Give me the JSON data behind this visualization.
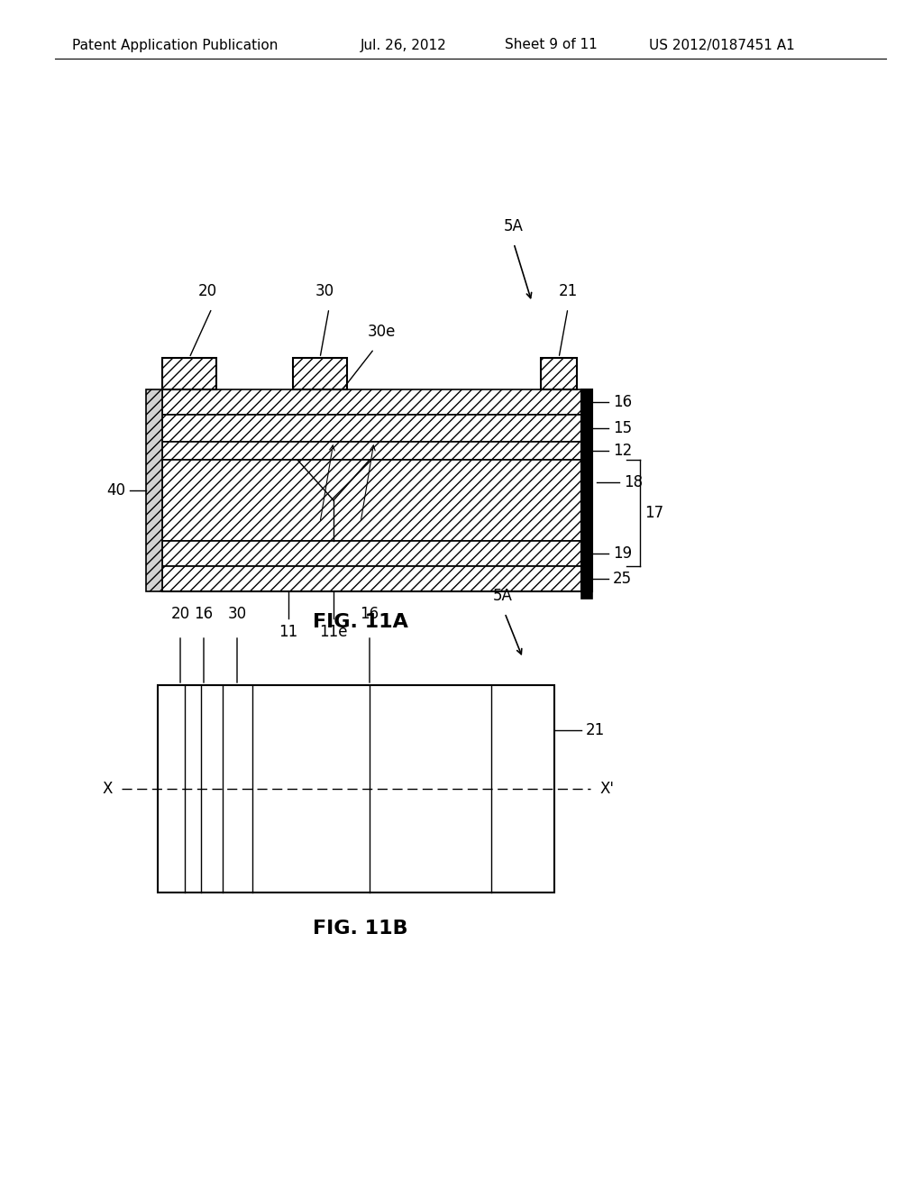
{
  "bg_color": "#ffffff",
  "header_text": "Patent Application Publication",
  "header_date": "Jul. 26, 2012",
  "header_sheet": "Sheet 9 of 11",
  "header_patent": "US 2012/0187451 A1",
  "fig1_label": "FIG. 11A",
  "fig2_label": "FIG. 11B",
  "fig1_ref_label": "5A",
  "fig2_ref_label": "5A",
  "layer_labels": [
    "16",
    "15",
    "12",
    "18",
    "19",
    "25"
  ],
  "group_label": "17",
  "left_label": "40",
  "electrode_labels": [
    "20",
    "30",
    "30e",
    "21"
  ],
  "bottom_labels": [
    "11",
    "11e"
  ],
  "fig2_top_labels": [
    "20",
    "16",
    "30",
    "16"
  ],
  "fig2_right_label": "21"
}
